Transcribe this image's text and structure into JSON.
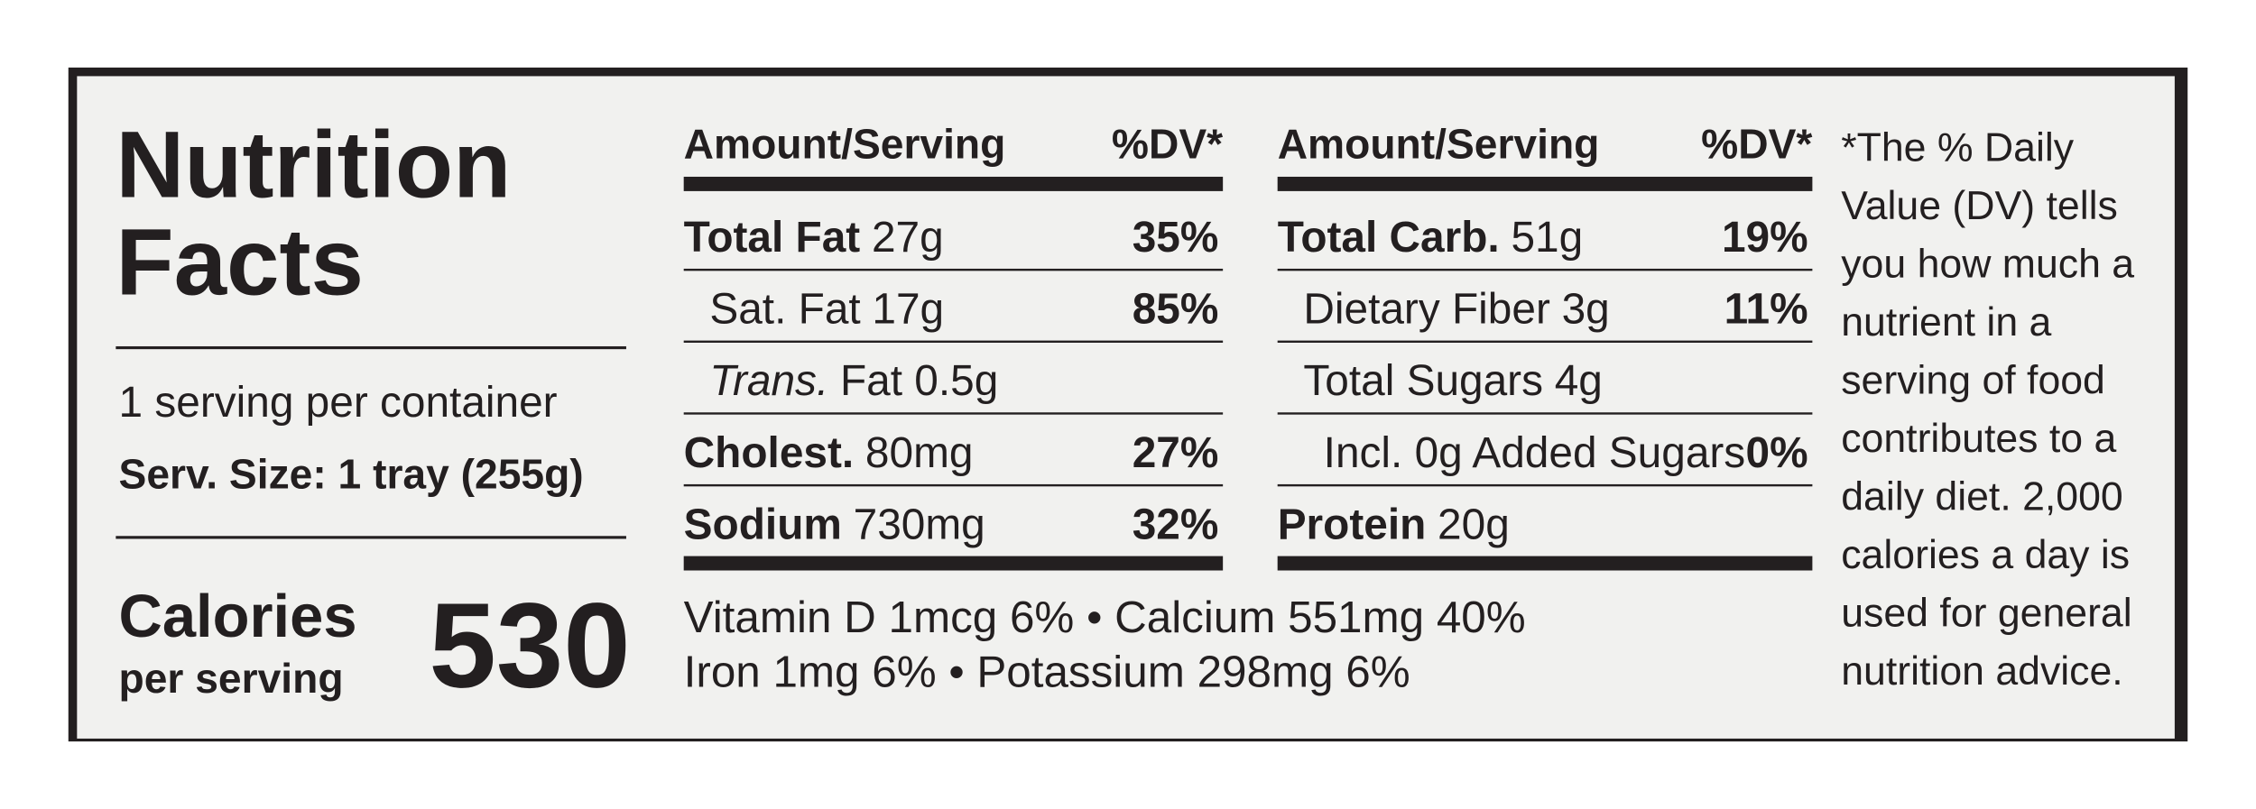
{
  "title_lines": [
    "Nutrition",
    "Facts"
  ],
  "servings_per_container": "1 serving per container",
  "serving_size": "Serv. Size: 1 tray (255g)",
  "calories": {
    "label": "Calories",
    "sublabel": "per serving",
    "value": "530"
  },
  "columns": [
    {
      "header": {
        "amount": "Amount/Serving",
        "dv": "%DV*"
      },
      "rows": [
        {
          "name": "Total Fat",
          "amount": "27g",
          "dv": "35%"
        },
        {
          "name": "Sat. Fat",
          "amount": "17g",
          "dv": "85%"
        },
        {
          "name": "Trans.",
          "amount": "Fat 0.5g"
        },
        {
          "name": "Cholest.",
          "amount": "80mg",
          "dv": "27%"
        },
        {
          "name": "Sodium",
          "amount": "730mg",
          "dv": "32%"
        }
      ]
    },
    {
      "header": {
        "amount": "Amount/Serving",
        "dv": "%DV*"
      },
      "rows": [
        {
          "name": "Total Carb.",
          "amount": "51g",
          "dv": "19%"
        },
        {
          "name": "Dietary Fiber",
          "amount": "3g",
          "dv": "11%"
        },
        {
          "name": "Total Sugars",
          "amount": "4g"
        },
        {
          "name": "Incl. 0g Added Sugars",
          "dv": "0%"
        },
        {
          "name": "Protein",
          "amount": "20g"
        }
      ]
    }
  ],
  "vitamins": [
    [
      "Vitamin D 1mcg 6%",
      "Calcium 551mg 40%"
    ],
    [
      "Iron 1mg 6%",
      "Potassium 298mg 6%"
    ]
  ],
  "footnote_lines": [
    "*The % Daily",
    "Value (DV) tells",
    "you how much a",
    "nutrient in a",
    "serving of food",
    "contributes to a",
    "daily diet. 2,000",
    "calories a day is",
    "used for general",
    "nutrition advice."
  ]
}
